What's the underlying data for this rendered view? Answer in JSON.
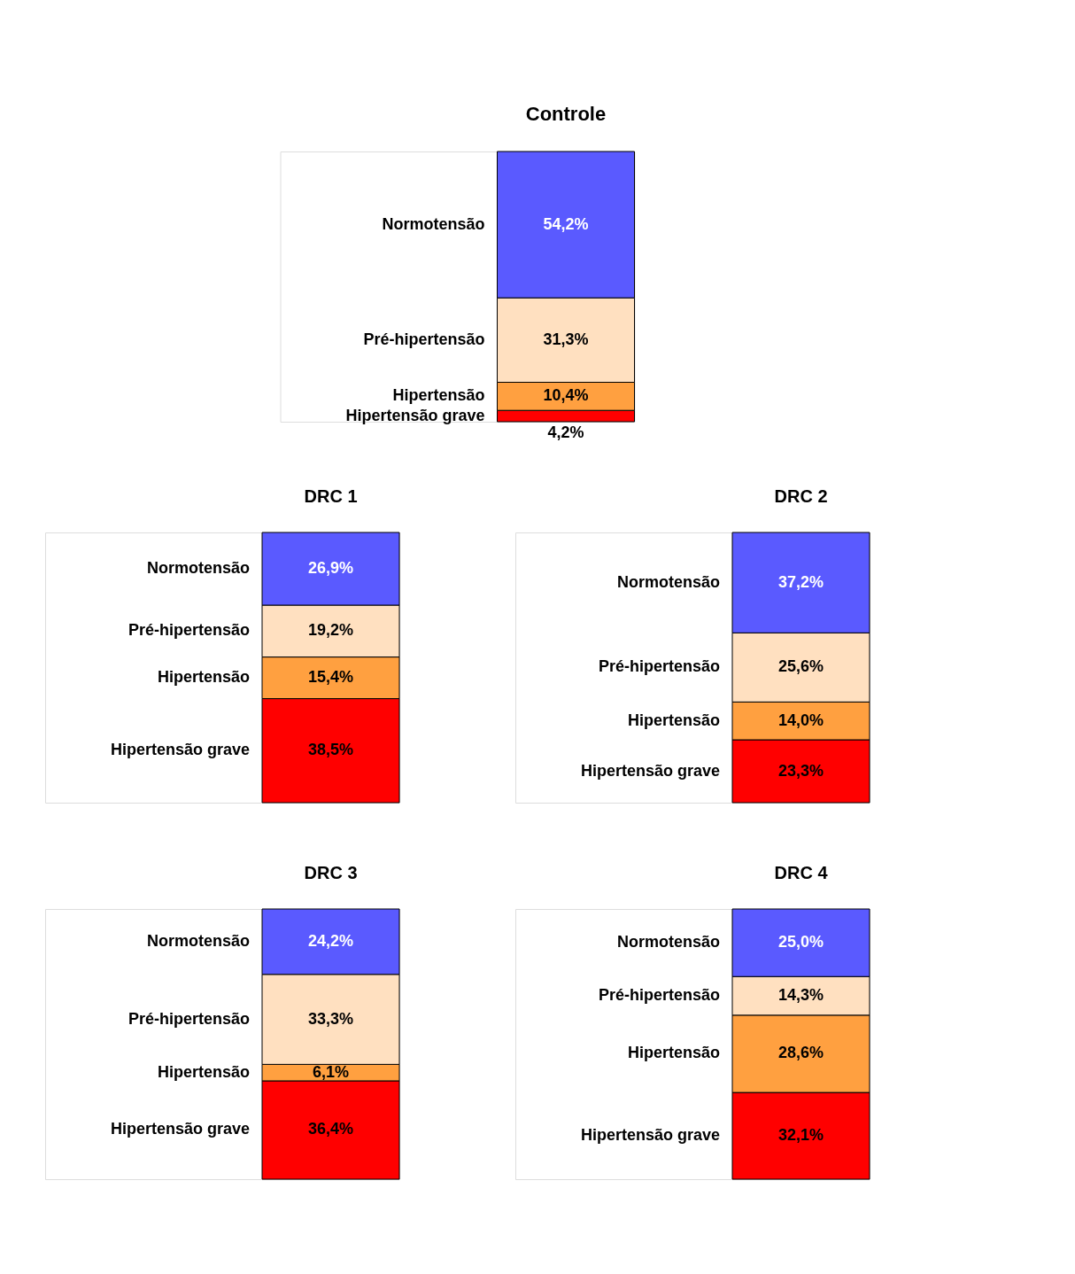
{
  "chart_data": [
    {
      "type": "bar",
      "stacked": true,
      "title": "Controle",
      "categories": [
        null
      ],
      "series": [
        {
          "name": "Hipertensão grave",
          "color": "#ff0000",
          "values": [
            4.2
          ],
          "value_labels": [
            "4,2%"
          ]
        },
        {
          "name": "Hipertensão",
          "color": "#ffa040",
          "values": [
            10.4
          ],
          "value_labels": [
            "10,4%"
          ]
        },
        {
          "name": "Pré-hipertensão",
          "color": "#ffe0c0",
          "values": [
            31.3
          ],
          "value_labels": [
            "31,3%"
          ]
        },
        {
          "name": "Normotensão",
          "color": "#5a5aff",
          "values": [
            54.2
          ],
          "value_labels": [
            "54,2%"
          ]
        }
      ]
    },
    {
      "type": "bar",
      "stacked": true,
      "title": "DRC 1",
      "categories": [
        null
      ],
      "series": [
        {
          "name": "Hipertensão grave",
          "color": "#ff0000",
          "values": [
            38.5
          ],
          "value_labels": [
            "38,5%"
          ]
        },
        {
          "name": "Hipertensão",
          "color": "#ffa040",
          "values": [
            15.4
          ],
          "value_labels": [
            "15,4%"
          ]
        },
        {
          "name": "Pré-hipertensão",
          "color": "#ffe0c0",
          "values": [
            19.2
          ],
          "value_labels": [
            "19,2%"
          ]
        },
        {
          "name": "Normotensão",
          "color": "#5a5aff",
          "values": [
            26.9
          ],
          "value_labels": [
            "26,9%"
          ]
        }
      ]
    },
    {
      "type": "bar",
      "stacked": true,
      "title": "DRC 2",
      "categories": [
        null
      ],
      "series": [
        {
          "name": "Hipertensão grave",
          "color": "#ff0000",
          "values": [
            23.3
          ],
          "value_labels": [
            "23,3%"
          ]
        },
        {
          "name": "Hipertensão",
          "color": "#ffa040",
          "values": [
            14.0
          ],
          "value_labels": [
            "14,0%"
          ]
        },
        {
          "name": "Pré-hipertensão",
          "color": "#ffe0c0",
          "values": [
            25.6
          ],
          "value_labels": [
            "25,6%"
          ]
        },
        {
          "name": "Normotensão",
          "color": "#5a5aff",
          "values": [
            37.2
          ],
          "value_labels": [
            "37,2%"
          ]
        }
      ]
    },
    {
      "type": "bar",
      "stacked": true,
      "title": "DRC 3",
      "categories": [
        null
      ],
      "series": [
        {
          "name": "Hipertensão grave",
          "color": "#ff0000",
          "values": [
            36.4
          ],
          "value_labels": [
            "36,4%"
          ]
        },
        {
          "name": "Hipertensão",
          "color": "#ffa040",
          "values": [
            6.1
          ],
          "value_labels": [
            "6,1%"
          ]
        },
        {
          "name": "Pré-hipertensão",
          "color": "#ffe0c0",
          "values": [
            33.3
          ],
          "value_labels": [
            "33,3%"
          ]
        },
        {
          "name": "Normotensão",
          "color": "#5a5aff",
          "values": [
            24.2
          ],
          "value_labels": [
            "24,2%"
          ]
        }
      ]
    },
    {
      "type": "bar",
      "stacked": true,
      "title": "DRC 4",
      "categories": [
        null
      ],
      "series": [
        {
          "name": "Hipertensão grave",
          "color": "#ff0000",
          "values": [
            32.1
          ],
          "value_labels": [
            "32,1%"
          ]
        },
        {
          "name": "Hipertensão",
          "color": "#ffa040",
          "values": [
            28.6
          ],
          "value_labels": [
            "28,6%"
          ]
        },
        {
          "name": "Pré-hipertensão",
          "color": "#ffe0c0",
          "values": [
            14.3
          ],
          "value_labels": [
            "14,3%"
          ]
        },
        {
          "name": "Normotensão",
          "color": "#5a5aff",
          "values": [
            25.0
          ],
          "value_labels": [
            "25,0%"
          ]
        }
      ]
    }
  ]
}
